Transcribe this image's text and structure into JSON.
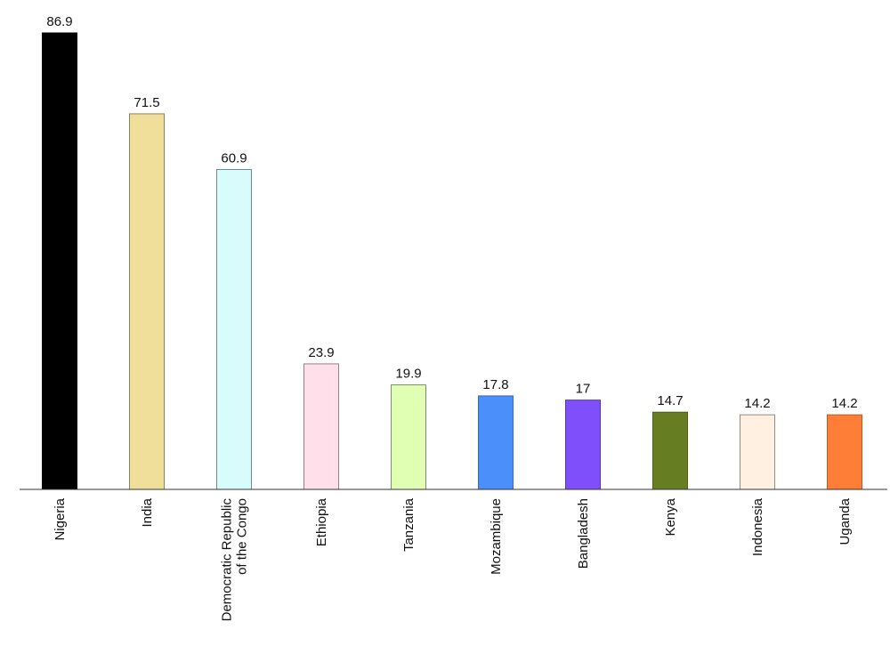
{
  "chart_data": {
    "type": "bar",
    "title": "",
    "xlabel": "",
    "ylabel": "",
    "ylim": [
      0,
      86.9
    ],
    "grid": false,
    "legend": "none",
    "categories": [
      "Nigeria",
      "India",
      "Democratic Republic of the Congo",
      "Ethiopia",
      "Tanzania",
      "Mozambique",
      "Bangladesh",
      "Kenya",
      "Indonesia",
      "Uganda"
    ],
    "category_label_lines": [
      [
        "Nigeria"
      ],
      [
        "India"
      ],
      [
        "Democratic Republic",
        "of the Congo"
      ],
      [
        "Ethiopia"
      ],
      [
        "Tanzania"
      ],
      [
        "Mozambique"
      ],
      [
        "Bangladesh"
      ],
      [
        "Kenya"
      ],
      [
        "Indonesia"
      ],
      [
        "Uganda"
      ]
    ],
    "values": [
      86.9,
      71.5,
      60.9,
      23.9,
      19.9,
      17.8,
      17,
      14.7,
      14.2,
      14.2
    ],
    "value_labels": [
      "86.9",
      "71.5",
      "60.9",
      "23.9",
      "19.9",
      "17.8",
      "17",
      "14.7",
      "14.2",
      "14.2"
    ],
    "colors": [
      "#000000",
      "#f0df9a",
      "#d8fbfb",
      "#ffdfe9",
      "#e1ffb3",
      "#4b8ffb",
      "#7e4ffa",
      "#667d22",
      "#fff0e2",
      "#fe7e37"
    ],
    "stroke_colors": [
      "#000000",
      "#8a8258",
      "#6d8a8a",
      "#948188",
      "#818f6e",
      "#3a67b8",
      "#5535b0",
      "#4d5e1a",
      "#948a80",
      "#b85a28"
    ]
  }
}
